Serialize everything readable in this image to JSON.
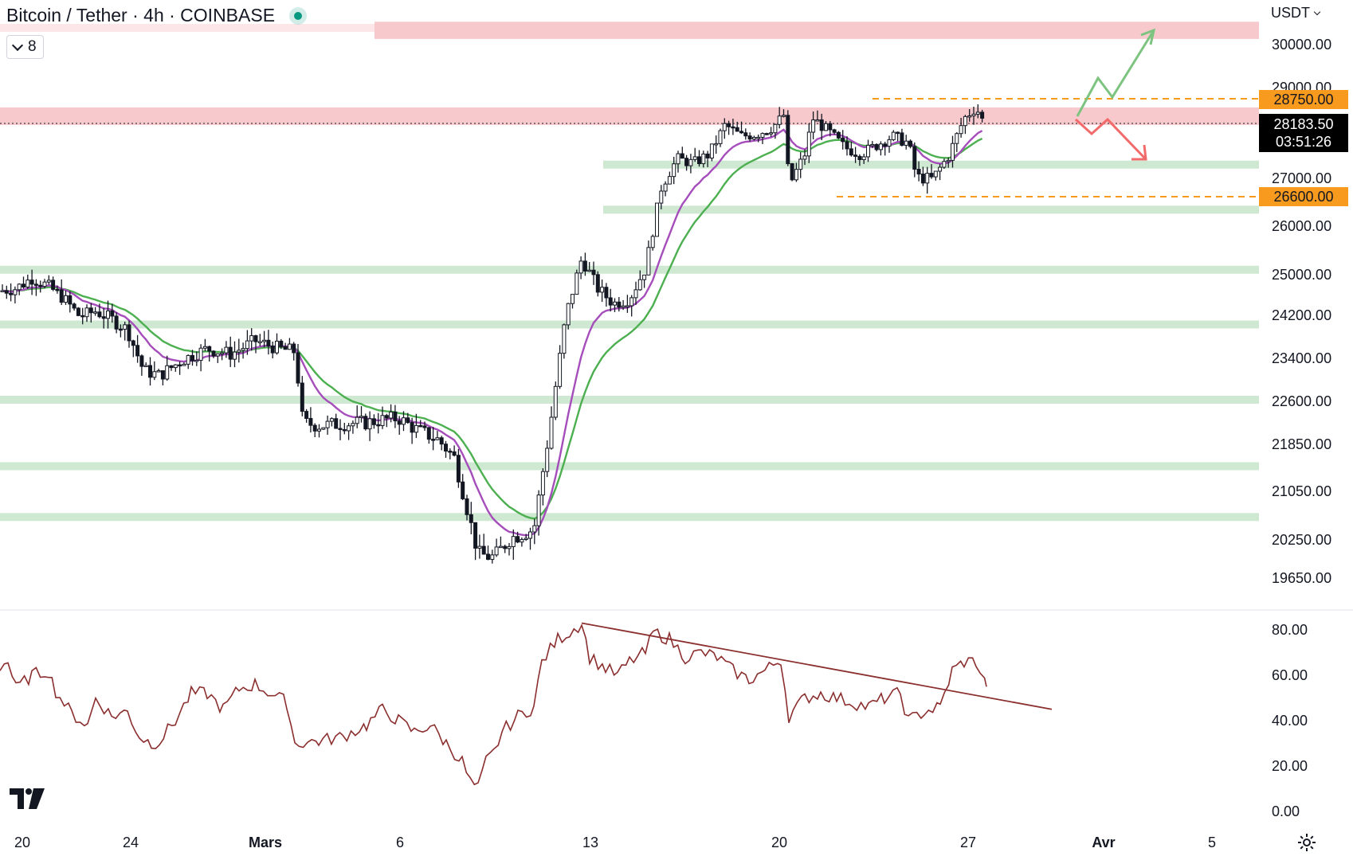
{
  "header": {
    "title": "Bitcoin / Tether · 4h · COINBASE",
    "indicators_count": "8",
    "currency": "USDT"
  },
  "price_axis": [
    "30000.00",
    "29000.00",
    "27000.00",
    "26000.00",
    "25000.00",
    "24200.00",
    "23400.00",
    "22600.00",
    "21850.00",
    "21050.00",
    "20250.00",
    "19650.00"
  ],
  "price_tags": {
    "upper": "28750.00",
    "lower": "26600.00",
    "last": "28183.50",
    "countdown": "03:51:26"
  },
  "time_axis": [
    "20",
    "24",
    "Mars",
    "6",
    "13",
    "20",
    "27",
    "Avr",
    "5"
  ],
  "rsi_axis": [
    "80.00",
    "60.00",
    "40.00",
    "20.00",
    "0.00"
  ],
  "colors": {
    "up_arrow": "#7cc47f",
    "down_arrow": "#f26a6a",
    "resistance": "#f8c9cc",
    "support": "#cfe8d1",
    "ema_fast": "#a64dbc",
    "ema_slow": "#4caf50",
    "rsi": "#8b2e2e",
    "tag": "#f79a1e"
  },
  "icons": {
    "logo": "tradingview-logo",
    "settings": "gear-icon"
  },
  "chart_data": [
    {
      "type": "candlestick",
      "title": "Bitcoin / Tether · 4h · COINBASE",
      "ylim": [
        19400,
        30600
      ],
      "x_ticks": [
        "20",
        "24",
        "Mars",
        "6",
        "13",
        "20",
        "27",
        "Avr",
        "5"
      ],
      "close_path_approx": [
        [
          0,
          24650
        ],
        [
          20,
          24700
        ],
        [
          40,
          24900
        ],
        [
          60,
          24750
        ],
        [
          80,
          24500
        ],
        [
          100,
          24150
        ],
        [
          120,
          24250
        ],
        [
          140,
          24100
        ],
        [
          160,
          23900
        ],
        [
          180,
          23150
        ],
        [
          200,
          23050
        ],
        [
          230,
          23350
        ],
        [
          260,
          23550
        ],
        [
          290,
          23450
        ],
        [
          320,
          23700
        ],
        [
          350,
          23550
        ],
        [
          370,
          23500
        ],
        [
          380,
          22200
        ],
        [
          400,
          22150
        ],
        [
          430,
          22180
        ],
        [
          460,
          22200
        ],
        [
          480,
          22250
        ],
        [
          500,
          22280
        ],
        [
          520,
          22100
        ],
        [
          550,
          21900
        ],
        [
          570,
          21600
        ],
        [
          600,
          20000
        ],
        [
          620,
          19950
        ],
        [
          640,
          20250
        ],
        [
          670,
          20400
        ],
        [
          690,
          22100
        ],
        [
          710,
          24150
        ],
        [
          730,
          25300
        ],
        [
          750,
          24700
        ],
        [
          770,
          24400
        ],
        [
          790,
          24500
        ],
        [
          810,
          25100
        ],
        [
          830,
          26800
        ],
        [
          850,
          27400
        ],
        [
          870,
          27300
        ],
        [
          890,
          27500
        ],
        [
          910,
          28150
        ],
        [
          930,
          27900
        ],
        [
          950,
          27950
        ],
        [
          970,
          28100
        ],
        [
          985,
          28400
        ],
        [
          990,
          26800
        ],
        [
          1010,
          27500
        ],
        [
          1020,
          28300
        ],
        [
          1040,
          28000
        ],
        [
          1060,
          27650
        ],
        [
          1080,
          27500
        ],
        [
          1100,
          27700
        ],
        [
          1120,
          27900
        ],
        [
          1140,
          27750
        ],
        [
          1150,
          27000
        ],
        [
          1170,
          26950
        ],
        [
          1190,
          27450
        ],
        [
          1210,
          28300
        ],
        [
          1225,
          28550
        ],
        [
          1235,
          28183.5
        ]
      ],
      "zones": {
        "resistance": [
          [
            30150,
            30550
          ],
          [
            28150,
            28550
          ]
        ],
        "support": [
          27270,
          26320,
          25070,
          24000,
          22600,
          21450,
          20600
        ],
        "range_high": 28750,
        "range_low": 26600
      },
      "last_price": 28183.5
    },
    {
      "type": "line",
      "ylim": [
        0,
        100
      ],
      "y_ticks": [
        80,
        60,
        40,
        20,
        0
      ],
      "values_approx": [
        [
          0,
          64
        ],
        [
          10,
          66
        ],
        [
          20,
          54
        ],
        [
          40,
          60
        ],
        [
          60,
          62
        ],
        [
          70,
          53
        ],
        [
          90,
          43
        ],
        [
          110,
          38
        ],
        [
          120,
          50
        ],
        [
          140,
          42
        ],
        [
          160,
          44
        ],
        [
          175,
          33
        ],
        [
          190,
          30
        ],
        [
          200,
          31
        ],
        [
          220,
          40
        ],
        [
          240,
          52
        ],
        [
          260,
          52
        ],
        [
          280,
          45
        ],
        [
          300,
          54
        ],
        [
          320,
          56
        ],
        [
          340,
          52
        ],
        [
          360,
          48
        ],
        [
          370,
          30
        ],
        [
          400,
          31
        ],
        [
          430,
          33
        ],
        [
          460,
          38
        ],
        [
          480,
          45
        ],
        [
          500,
          40
        ],
        [
          520,
          35
        ],
        [
          540,
          38
        ],
        [
          560,
          30
        ],
        [
          580,
          22
        ],
        [
          590,
          13
        ],
        [
          600,
          10
        ],
        [
          610,
          22
        ],
        [
          620,
          26
        ],
        [
          630,
          35
        ],
        [
          650,
          42
        ],
        [
          670,
          46
        ],
        [
          680,
          66
        ],
        [
          700,
          76
        ],
        [
          715,
          79
        ],
        [
          730,
          83
        ],
        [
          740,
          68
        ],
        [
          760,
          63
        ],
        [
          775,
          60
        ],
        [
          790,
          66
        ],
        [
          810,
          70
        ],
        [
          820,
          79
        ],
        [
          840,
          76
        ],
        [
          860,
          68
        ],
        [
          880,
          70
        ],
        [
          900,
          68
        ],
        [
          920,
          62
        ],
        [
          940,
          58
        ],
        [
          960,
          62
        ],
        [
          980,
          67
        ],
        [
          990,
          42
        ],
        [
          1010,
          50
        ],
        [
          1030,
          52
        ],
        [
          1050,
          50
        ],
        [
          1070,
          48
        ],
        [
          1090,
          46
        ],
        [
          1110,
          50
        ],
        [
          1130,
          52
        ],
        [
          1140,
          40
        ],
        [
          1160,
          44
        ],
        [
          1180,
          46
        ],
        [
          1195,
          62
        ],
        [
          1210,
          66
        ],
        [
          1225,
          66
        ],
        [
          1238,
          55
        ]
      ],
      "trendline": [
        [
          730,
          83
        ],
        [
          1320,
          45
        ]
      ]
    }
  ]
}
